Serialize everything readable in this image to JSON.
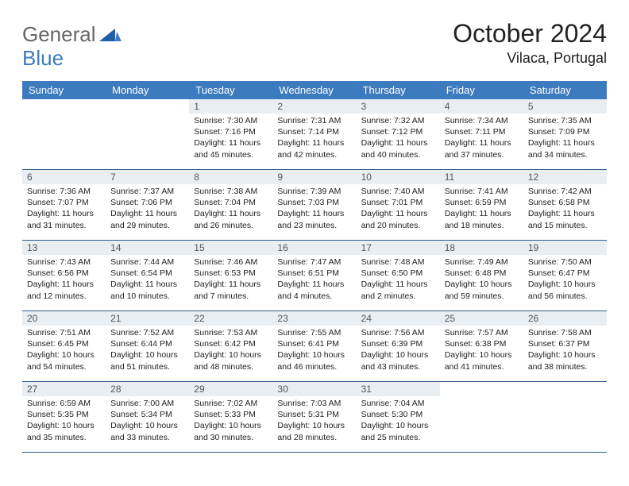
{
  "brand": {
    "word1": "General",
    "word2": "Blue"
  },
  "title": {
    "month": "October 2024",
    "location": "Vilaca, Portugal"
  },
  "style": {
    "header_bg": "#3d7bbf",
    "daynum_bg": "#e9eef2",
    "row_border": "#2e5a8a",
    "text_color": "#222222",
    "brand_gray": "#666666",
    "brand_blue": "#3d7bbf",
    "background": "#ffffff",
    "cell_fontsize": 10.5
  },
  "weekdays": [
    "Sunday",
    "Monday",
    "Tuesday",
    "Wednesday",
    "Thursday",
    "Friday",
    "Saturday"
  ],
  "grid": {
    "leading_blanks": 2,
    "days": [
      {
        "n": 1,
        "sunrise": "7:30 AM",
        "sunset": "7:16 PM",
        "daylight": "11 hours and 45 minutes."
      },
      {
        "n": 2,
        "sunrise": "7:31 AM",
        "sunset": "7:14 PM",
        "daylight": "11 hours and 42 minutes."
      },
      {
        "n": 3,
        "sunrise": "7:32 AM",
        "sunset": "7:12 PM",
        "daylight": "11 hours and 40 minutes."
      },
      {
        "n": 4,
        "sunrise": "7:34 AM",
        "sunset": "7:11 PM",
        "daylight": "11 hours and 37 minutes."
      },
      {
        "n": 5,
        "sunrise": "7:35 AM",
        "sunset": "7:09 PM",
        "daylight": "11 hours and 34 minutes."
      },
      {
        "n": 6,
        "sunrise": "7:36 AM",
        "sunset": "7:07 PM",
        "daylight": "11 hours and 31 minutes."
      },
      {
        "n": 7,
        "sunrise": "7:37 AM",
        "sunset": "7:06 PM",
        "daylight": "11 hours and 29 minutes."
      },
      {
        "n": 8,
        "sunrise": "7:38 AM",
        "sunset": "7:04 PM",
        "daylight": "11 hours and 26 minutes."
      },
      {
        "n": 9,
        "sunrise": "7:39 AM",
        "sunset": "7:03 PM",
        "daylight": "11 hours and 23 minutes."
      },
      {
        "n": 10,
        "sunrise": "7:40 AM",
        "sunset": "7:01 PM",
        "daylight": "11 hours and 20 minutes."
      },
      {
        "n": 11,
        "sunrise": "7:41 AM",
        "sunset": "6:59 PM",
        "daylight": "11 hours and 18 minutes."
      },
      {
        "n": 12,
        "sunrise": "7:42 AM",
        "sunset": "6:58 PM",
        "daylight": "11 hours and 15 minutes."
      },
      {
        "n": 13,
        "sunrise": "7:43 AM",
        "sunset": "6:56 PM",
        "daylight": "11 hours and 12 minutes."
      },
      {
        "n": 14,
        "sunrise": "7:44 AM",
        "sunset": "6:54 PM",
        "daylight": "11 hours and 10 minutes."
      },
      {
        "n": 15,
        "sunrise": "7:46 AM",
        "sunset": "6:53 PM",
        "daylight": "11 hours and 7 minutes."
      },
      {
        "n": 16,
        "sunrise": "7:47 AM",
        "sunset": "6:51 PM",
        "daylight": "11 hours and 4 minutes."
      },
      {
        "n": 17,
        "sunrise": "7:48 AM",
        "sunset": "6:50 PM",
        "daylight": "11 hours and 2 minutes."
      },
      {
        "n": 18,
        "sunrise": "7:49 AM",
        "sunset": "6:48 PM",
        "daylight": "10 hours and 59 minutes."
      },
      {
        "n": 19,
        "sunrise": "7:50 AM",
        "sunset": "6:47 PM",
        "daylight": "10 hours and 56 minutes."
      },
      {
        "n": 20,
        "sunrise": "7:51 AM",
        "sunset": "6:45 PM",
        "daylight": "10 hours and 54 minutes."
      },
      {
        "n": 21,
        "sunrise": "7:52 AM",
        "sunset": "6:44 PM",
        "daylight": "10 hours and 51 minutes."
      },
      {
        "n": 22,
        "sunrise": "7:53 AM",
        "sunset": "6:42 PM",
        "daylight": "10 hours and 48 minutes."
      },
      {
        "n": 23,
        "sunrise": "7:55 AM",
        "sunset": "6:41 PM",
        "daylight": "10 hours and 46 minutes."
      },
      {
        "n": 24,
        "sunrise": "7:56 AM",
        "sunset": "6:39 PM",
        "daylight": "10 hours and 43 minutes."
      },
      {
        "n": 25,
        "sunrise": "7:57 AM",
        "sunset": "6:38 PM",
        "daylight": "10 hours and 41 minutes."
      },
      {
        "n": 26,
        "sunrise": "7:58 AM",
        "sunset": "6:37 PM",
        "daylight": "10 hours and 38 minutes."
      },
      {
        "n": 27,
        "sunrise": "6:59 AM",
        "sunset": "5:35 PM",
        "daylight": "10 hours and 35 minutes."
      },
      {
        "n": 28,
        "sunrise": "7:00 AM",
        "sunset": "5:34 PM",
        "daylight": "10 hours and 33 minutes."
      },
      {
        "n": 29,
        "sunrise": "7:02 AM",
        "sunset": "5:33 PM",
        "daylight": "10 hours and 30 minutes."
      },
      {
        "n": 30,
        "sunrise": "7:03 AM",
        "sunset": "5:31 PM",
        "daylight": "10 hours and 28 minutes."
      },
      {
        "n": 31,
        "sunrise": "7:04 AM",
        "sunset": "5:30 PM",
        "daylight": "10 hours and 25 minutes."
      }
    ]
  },
  "labels": {
    "sunrise": "Sunrise:",
    "sunset": "Sunset:",
    "daylight": "Daylight:"
  }
}
